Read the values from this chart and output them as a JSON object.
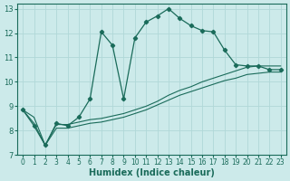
{
  "xlabel": "Humidex (Indice chaleur)",
  "bg_color": "#cceaea",
  "grid_color": "#b0d8d8",
  "line_color": "#1a6b5a",
  "xlim": [
    -0.5,
    23.5
  ],
  "ylim": [
    7,
    13.2
  ],
  "xticks": [
    0,
    1,
    2,
    3,
    4,
    5,
    6,
    7,
    8,
    9,
    10,
    11,
    12,
    13,
    14,
    15,
    16,
    17,
    18,
    19,
    20,
    21,
    22,
    23
  ],
  "yticks": [
    7,
    8,
    9,
    10,
    11,
    12,
    13
  ],
  "curve1_x": [
    0,
    1,
    2,
    3,
    4,
    5,
    6,
    7,
    8,
    9,
    10,
    11,
    12,
    13,
    14,
    15,
    16,
    17,
    18,
    19,
    20,
    21,
    22,
    23
  ],
  "curve1_y": [
    8.85,
    8.2,
    7.4,
    8.3,
    8.2,
    8.55,
    9.3,
    12.05,
    11.5,
    9.3,
    11.8,
    12.45,
    12.7,
    13.0,
    12.6,
    12.3,
    12.1,
    12.05,
    11.3,
    10.7,
    10.65,
    10.65,
    10.5,
    10.5
  ],
  "curve2_x": [
    0,
    1,
    2,
    3,
    4,
    5,
    6,
    7,
    8,
    9,
    10,
    11,
    12,
    13,
    14,
    15,
    16,
    17,
    18,
    19,
    20,
    21,
    22,
    23
  ],
  "curve2_y": [
    8.85,
    8.55,
    7.4,
    8.25,
    8.25,
    8.35,
    8.45,
    8.5,
    8.6,
    8.7,
    8.85,
    9.0,
    9.2,
    9.45,
    9.65,
    9.8,
    10.0,
    10.15,
    10.3,
    10.45,
    10.6,
    10.65,
    10.65,
    10.65
  ],
  "curve3_x": [
    0,
    1,
    2,
    3,
    4,
    5,
    6,
    7,
    8,
    9,
    10,
    11,
    12,
    13,
    14,
    15,
    16,
    17,
    18,
    19,
    20,
    21,
    22,
    23
  ],
  "curve3_y": [
    8.85,
    8.3,
    7.4,
    8.1,
    8.1,
    8.2,
    8.3,
    8.35,
    8.45,
    8.55,
    8.7,
    8.85,
    9.05,
    9.25,
    9.45,
    9.6,
    9.75,
    9.9,
    10.05,
    10.15,
    10.3,
    10.35,
    10.4,
    10.4
  ]
}
